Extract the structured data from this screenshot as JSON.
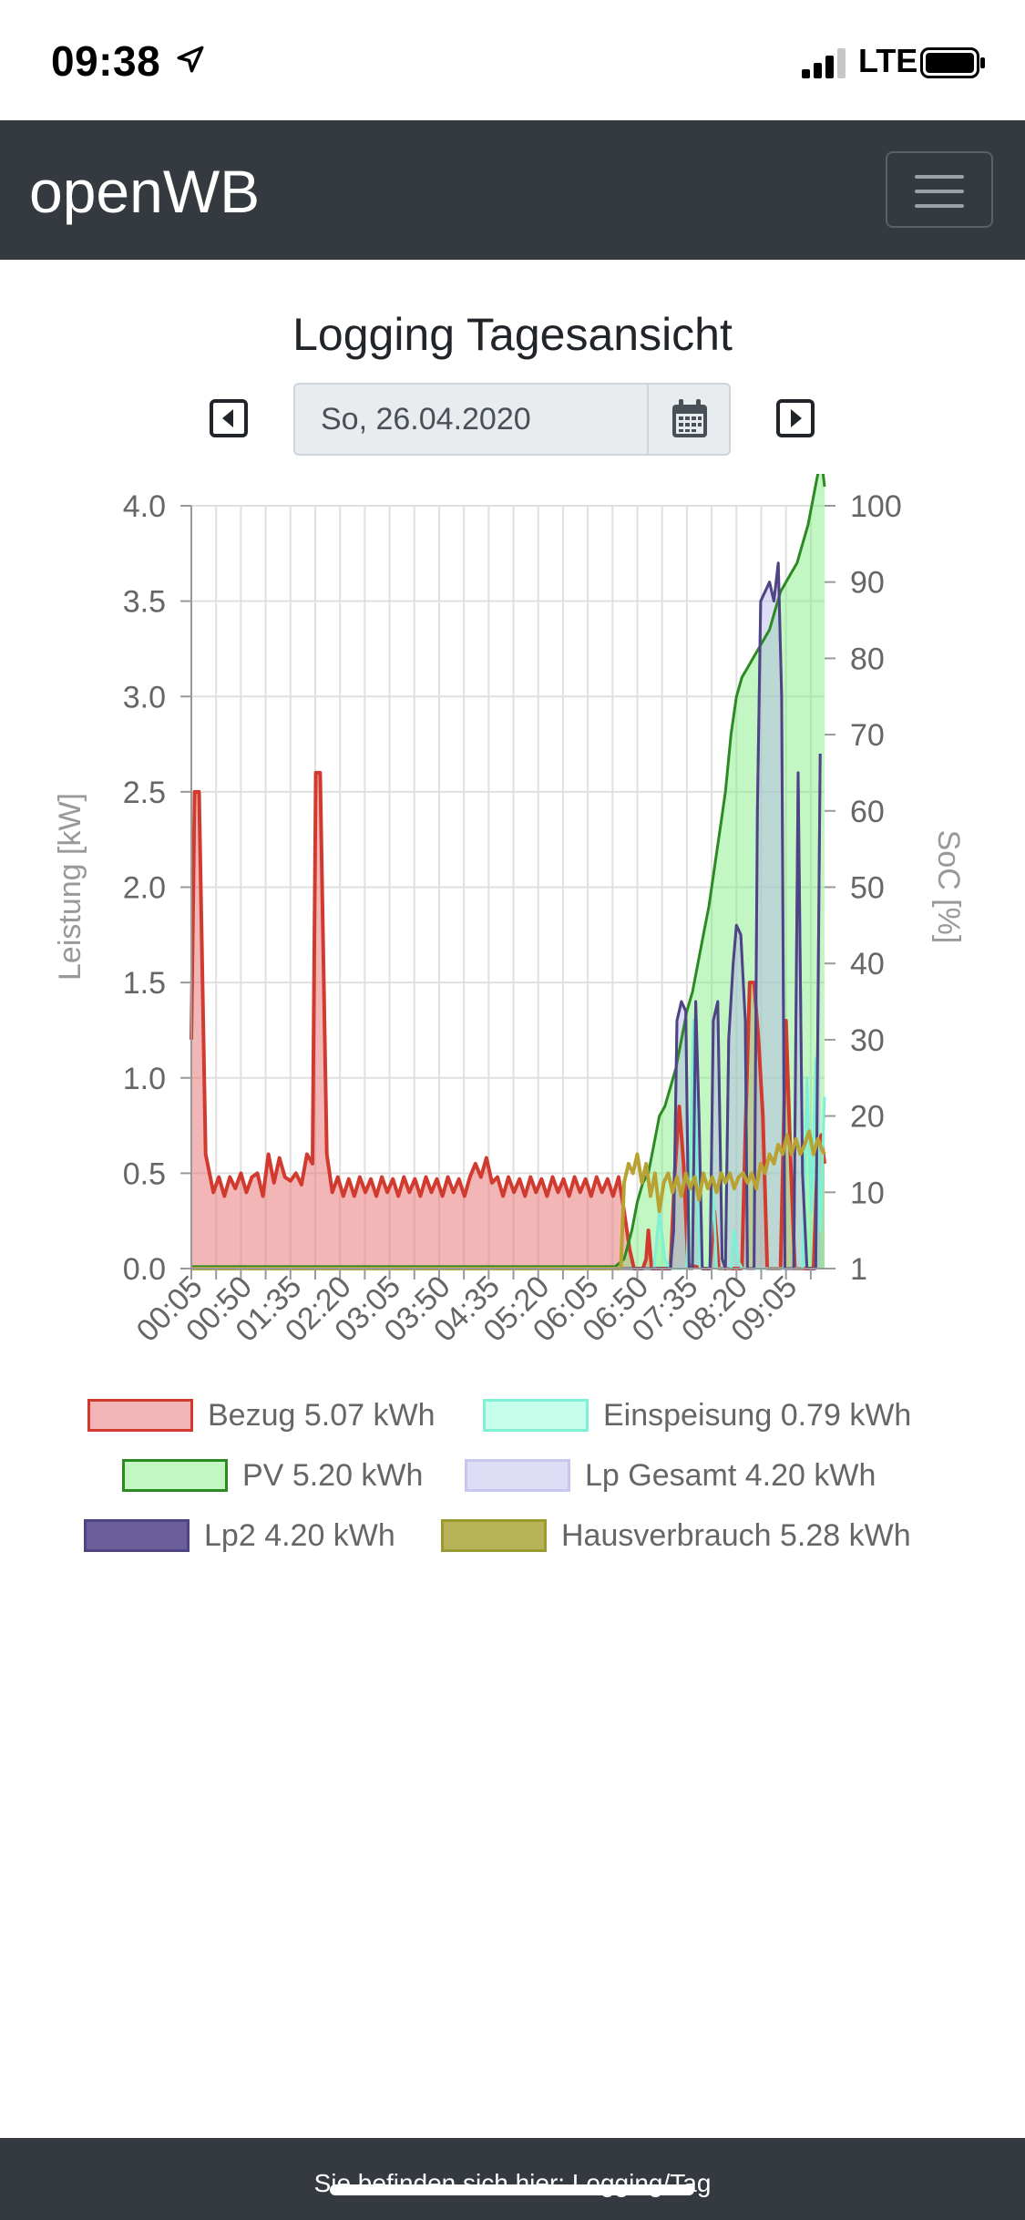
{
  "status_bar": {
    "time": "09:38",
    "network": "LTE"
  },
  "navbar": {
    "brand": "openWB"
  },
  "page": {
    "title": "Logging Tagesansicht",
    "date": "So, 26.04.2020"
  },
  "footer": {
    "text": "Sie befinden sich hier: Logging/Tag"
  },
  "icons": {
    "location": "location-arrow-icon",
    "signal": "cellular-signal-icon",
    "battery": "battery-icon",
    "menu": "hamburger-menu-icon",
    "prev": "caret-left-icon",
    "next": "caret-right-icon",
    "calendar": "calendar-icon"
  },
  "colors": {
    "navbar": "#343a40",
    "bezug": "#d13b2f",
    "einspeisung": "#7ff0d6",
    "pv": "#2c8a23",
    "lp_gesamt": "#8d8be0",
    "lp2": "#4f4483",
    "hausverbrauch": "#b8a233"
  },
  "chart_data": {
    "type": "area",
    "ylabel": "Leistung [kW]",
    "y2label": "SoC [%]",
    "ylim": [
      0,
      4.0
    ],
    "y2lim": [
      1,
      100
    ],
    "yticks": [
      "4.0",
      "3.5",
      "3.0",
      "2.5",
      "2.0",
      "1.5",
      "1.0",
      "0.5",
      "0.0"
    ],
    "y2ticks": [
      "100",
      "90",
      "80",
      "70",
      "60",
      "50",
      "40",
      "30",
      "20",
      "10",
      "1"
    ],
    "xticks": [
      "00:05",
      "00:50",
      "01:35",
      "02:20",
      "03:05",
      "03:50",
      "04:35",
      "05:20",
      "06:05",
      "06:50",
      "07:35",
      "08:20",
      "09:05"
    ],
    "xrange_minutes": [
      5,
      580
    ],
    "legend_position": "bottom",
    "grid": true,
    "series": [
      {
        "name": "Bezug",
        "total": "5.07 kWh",
        "color": "#d13b2f",
        "fill": "rgba(232,110,110,0.5)",
        "points": [
          [
            5,
            1.2
          ],
          [
            8,
            2.5
          ],
          [
            12,
            2.5
          ],
          [
            18,
            0.6
          ],
          [
            25,
            0.4
          ],
          [
            30,
            0.48
          ],
          [
            35,
            0.38
          ],
          [
            40,
            0.48
          ],
          [
            45,
            0.42
          ],
          [
            50,
            0.5
          ],
          [
            55,
            0.4
          ],
          [
            60,
            0.48
          ],
          [
            65,
            0.5
          ],
          [
            70,
            0.38
          ],
          [
            75,
            0.6
          ],
          [
            80,
            0.45
          ],
          [
            85,
            0.58
          ],
          [
            90,
            0.48
          ],
          [
            95,
            0.46
          ],
          [
            100,
            0.5
          ],
          [
            105,
            0.44
          ],
          [
            110,
            0.6
          ],
          [
            115,
            0.55
          ],
          [
            118,
            2.6
          ],
          [
            122,
            2.6
          ],
          [
            128,
            0.6
          ],
          [
            133,
            0.4
          ],
          [
            138,
            0.48
          ],
          [
            143,
            0.38
          ],
          [
            148,
            0.47
          ],
          [
            153,
            0.38
          ],
          [
            158,
            0.48
          ],
          [
            163,
            0.4
          ],
          [
            168,
            0.47
          ],
          [
            173,
            0.38
          ],
          [
            178,
            0.48
          ],
          [
            183,
            0.4
          ],
          [
            188,
            0.47
          ],
          [
            193,
            0.38
          ],
          [
            198,
            0.48
          ],
          [
            203,
            0.4
          ],
          [
            208,
            0.47
          ],
          [
            213,
            0.38
          ],
          [
            218,
            0.48
          ],
          [
            223,
            0.4
          ],
          [
            228,
            0.47
          ],
          [
            233,
            0.38
          ],
          [
            238,
            0.48
          ],
          [
            243,
            0.4
          ],
          [
            248,
            0.47
          ],
          [
            253,
            0.38
          ],
          [
            258,
            0.48
          ],
          [
            263,
            0.55
          ],
          [
            268,
            0.48
          ],
          [
            273,
            0.58
          ],
          [
            278,
            0.45
          ],
          [
            283,
            0.48
          ],
          [
            288,
            0.38
          ],
          [
            293,
            0.48
          ],
          [
            298,
            0.4
          ],
          [
            303,
            0.47
          ],
          [
            308,
            0.38
          ],
          [
            313,
            0.48
          ],
          [
            318,
            0.4
          ],
          [
            323,
            0.47
          ],
          [
            328,
            0.38
          ],
          [
            333,
            0.48
          ],
          [
            338,
            0.4
          ],
          [
            343,
            0.47
          ],
          [
            348,
            0.38
          ],
          [
            353,
            0.48
          ],
          [
            358,
            0.4
          ],
          [
            363,
            0.47
          ],
          [
            368,
            0.38
          ],
          [
            373,
            0.48
          ],
          [
            378,
            0.4
          ],
          [
            383,
            0.47
          ],
          [
            388,
            0.38
          ],
          [
            393,
            0.48
          ],
          [
            398,
            0.3
          ],
          [
            403,
            0.1
          ],
          [
            407,
            0.0
          ],
          [
            415,
            0.0
          ],
          [
            418,
            0.05
          ],
          [
            420,
            0.2
          ],
          [
            423,
            0.0
          ],
          [
            440,
            0.0
          ],
          [
            444,
            0.5
          ],
          [
            448,
            0.85
          ],
          [
            452,
            0.55
          ],
          [
            456,
            0.02
          ],
          [
            470,
            0.0
          ],
          [
            476,
            0.0
          ],
          [
            480,
            0.3
          ],
          [
            484,
            0.0
          ],
          [
            505,
            0.0
          ],
          [
            508,
            0.7
          ],
          [
            512,
            1.5
          ],
          [
            516,
            1.5
          ],
          [
            520,
            1.2
          ],
          [
            524,
            0.8
          ],
          [
            528,
            0.0
          ],
          [
            540,
            0.0
          ],
          [
            545,
            1.3
          ],
          [
            549,
            0.6
          ],
          [
            553,
            0.0
          ],
          [
            570,
            0.0
          ],
          [
            574,
            0.65
          ],
          [
            577,
            0.7
          ],
          [
            580,
            0.55
          ]
        ]
      },
      {
        "name": "Einspeisung",
        "total": "0.79 kWh",
        "color": "#7ff0d6",
        "fill": "rgba(127,255,212,0.45)",
        "points": [
          [
            5,
            0
          ],
          [
            415,
            0
          ],
          [
            425,
            0.0
          ],
          [
            430,
            0.3
          ],
          [
            435,
            0.05
          ],
          [
            440,
            0.0
          ],
          [
            455,
            0.0
          ],
          [
            458,
            0.6
          ],
          [
            461,
            1.3
          ],
          [
            464,
            0.6
          ],
          [
            467,
            0.0
          ],
          [
            475,
            0.0
          ],
          [
            479,
            0.4
          ],
          [
            482,
            0.0
          ],
          [
            495,
            0.0
          ],
          [
            498,
            0.2
          ],
          [
            501,
            0.05
          ],
          [
            505,
            0.0
          ],
          [
            560,
            0.0
          ],
          [
            564,
            1.0
          ],
          [
            568,
            0.3
          ],
          [
            572,
            1.1
          ],
          [
            576,
            0.2
          ],
          [
            580,
            0.9
          ]
        ]
      },
      {
        "name": "PV",
        "total": "5.20 kWh",
        "color": "#2c8a23",
        "fill": "rgba(120,236,120,0.45)",
        "points": [
          [
            5,
            0.01
          ],
          [
            390,
            0.01
          ],
          [
            398,
            0.05
          ],
          [
            405,
            0.2
          ],
          [
            410,
            0.35
          ],
          [
            415,
            0.45
          ],
          [
            420,
            0.5
          ],
          [
            425,
            0.65
          ],
          [
            430,
            0.8
          ],
          [
            435,
            0.85
          ],
          [
            440,
            0.95
          ],
          [
            445,
            1.05
          ],
          [
            450,
            1.2
          ],
          [
            455,
            1.35
          ],
          [
            460,
            1.45
          ],
          [
            465,
            1.6
          ],
          [
            470,
            1.75
          ],
          [
            475,
            1.9
          ],
          [
            480,
            2.1
          ],
          [
            485,
            2.3
          ],
          [
            490,
            2.5
          ],
          [
            495,
            2.8
          ],
          [
            500,
            3.0
          ],
          [
            505,
            3.1
          ],
          [
            510,
            3.15
          ],
          [
            515,
            3.2
          ],
          [
            520,
            3.25
          ],
          [
            525,
            3.3
          ],
          [
            530,
            3.35
          ],
          [
            535,
            3.45
          ],
          [
            540,
            3.55
          ],
          [
            545,
            3.6
          ],
          [
            550,
            3.65
          ],
          [
            555,
            3.7
          ],
          [
            560,
            3.8
          ],
          [
            565,
            3.9
          ],
          [
            570,
            4.05
          ],
          [
            575,
            4.2
          ],
          [
            578,
            4.2
          ],
          [
            580,
            4.1
          ]
        ]
      },
      {
        "name": "Lp Gesamt",
        "total": "4.20 kWh",
        "color": "#8d8be0",
        "fill": "rgba(182,180,236,0.45)",
        "points": [
          [
            5,
            0
          ],
          [
            440,
            0
          ],
          [
            443,
            0.2
          ],
          [
            446,
            1.3
          ],
          [
            450,
            1.4
          ],
          [
            454,
            1.35
          ],
          [
            457,
            0.0
          ],
          [
            460,
            0.0
          ],
          [
            463,
            1.4
          ],
          [
            466,
            0.8
          ],
          [
            469,
            0.0
          ],
          [
            476,
            0.0
          ],
          [
            479,
            1.3
          ],
          [
            483,
            1.4
          ],
          [
            487,
            0.05
          ],
          [
            490,
            0.0
          ],
          [
            493,
            1.2
          ],
          [
            497,
            1.6
          ],
          [
            500,
            1.8
          ],
          [
            504,
            1.75
          ],
          [
            508,
            1.3
          ],
          [
            510,
            0.0
          ],
          [
            516,
            0.0
          ],
          [
            519,
            2.4
          ],
          [
            522,
            3.5
          ],
          [
            526,
            3.55
          ],
          [
            530,
            3.6
          ],
          [
            534,
            3.5
          ],
          [
            538,
            3.7
          ],
          [
            541,
            3.0
          ],
          [
            544,
            0.0
          ],
          [
            552,
            0.0
          ],
          [
            556,
            2.6
          ],
          [
            560,
            0.5
          ],
          [
            564,
            0.0
          ],
          [
            572,
            0.0
          ],
          [
            576,
            2.7
          ]
        ]
      },
      {
        "name": "Lp2",
        "total": "4.20 kWh",
        "color": "#4f4483",
        "fill": "none",
        "points": [
          [
            5,
            0
          ],
          [
            440,
            0
          ],
          [
            443,
            0.2
          ],
          [
            446,
            1.3
          ],
          [
            450,
            1.4
          ],
          [
            454,
            1.35
          ],
          [
            457,
            0.0
          ],
          [
            460,
            0.0
          ],
          [
            463,
            1.4
          ],
          [
            466,
            0.8
          ],
          [
            469,
            0.0
          ],
          [
            476,
            0.0
          ],
          [
            479,
            1.3
          ],
          [
            483,
            1.4
          ],
          [
            487,
            0.05
          ],
          [
            490,
            0.0
          ],
          [
            493,
            1.2
          ],
          [
            497,
            1.6
          ],
          [
            500,
            1.8
          ],
          [
            504,
            1.75
          ],
          [
            508,
            1.3
          ],
          [
            510,
            0.0
          ],
          [
            516,
            0.0
          ],
          [
            519,
            2.4
          ],
          [
            522,
            3.5
          ],
          [
            526,
            3.55
          ],
          [
            530,
            3.6
          ],
          [
            534,
            3.5
          ],
          [
            538,
            3.7
          ],
          [
            541,
            3.0
          ],
          [
            544,
            0.0
          ],
          [
            552,
            0.0
          ],
          [
            556,
            2.6
          ],
          [
            560,
            0.5
          ],
          [
            564,
            0.0
          ],
          [
            572,
            0.0
          ],
          [
            576,
            2.7
          ]
        ]
      },
      {
        "name": "Hausverbrauch",
        "total": "5.28 kWh",
        "color": "#b8a233",
        "fill": "none",
        "points": [
          [
            5,
            0
          ],
          [
            395,
            0.0
          ],
          [
            398,
            0.45
          ],
          [
            402,
            0.55
          ],
          [
            406,
            0.5
          ],
          [
            410,
            0.6
          ],
          [
            414,
            0.45
          ],
          [
            418,
            0.55
          ],
          [
            422,
            0.38
          ],
          [
            426,
            0.5
          ],
          [
            430,
            0.3
          ],
          [
            434,
            0.45
          ],
          [
            438,
            0.5
          ],
          [
            442,
            0.4
          ],
          [
            446,
            0.48
          ],
          [
            450,
            0.38
          ],
          [
            454,
            0.5
          ],
          [
            458,
            0.42
          ],
          [
            462,
            0.48
          ],
          [
            466,
            0.36
          ],
          [
            470,
            0.5
          ],
          [
            474,
            0.42
          ],
          [
            478,
            0.48
          ],
          [
            482,
            0.4
          ],
          [
            486,
            0.5
          ],
          [
            490,
            0.45
          ],
          [
            494,
            0.5
          ],
          [
            498,
            0.42
          ],
          [
            502,
            0.48
          ],
          [
            506,
            0.5
          ],
          [
            510,
            0.45
          ],
          [
            514,
            0.5
          ],
          [
            518,
            0.42
          ],
          [
            522,
            0.55
          ],
          [
            526,
            0.5
          ],
          [
            530,
            0.6
          ],
          [
            534,
            0.55
          ],
          [
            538,
            0.65
          ],
          [
            542,
            0.6
          ],
          [
            546,
            0.7
          ],
          [
            550,
            0.6
          ],
          [
            554,
            0.68
          ],
          [
            558,
            0.6
          ],
          [
            562,
            0.65
          ],
          [
            566,
            0.72
          ],
          [
            570,
            0.6
          ],
          [
            574,
            0.68
          ],
          [
            578,
            0.62
          ],
          [
            580,
            0.6
          ]
        ]
      }
    ]
  }
}
